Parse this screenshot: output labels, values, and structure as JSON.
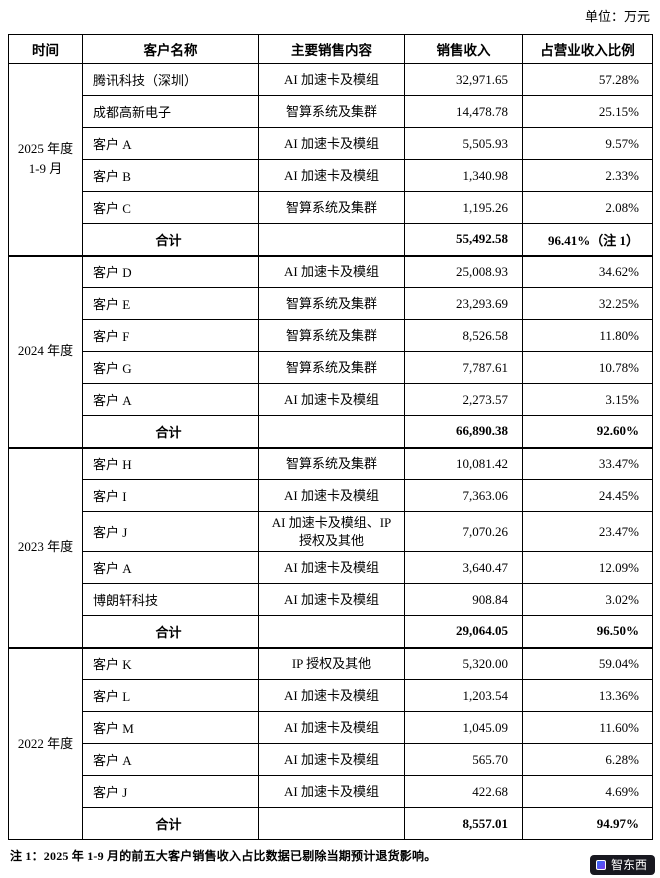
{
  "unit_label": "单位：万元",
  "table": {
    "headers": [
      "时间",
      "客户名称",
      "主要销售内容",
      "销售收入",
      "占营业收入比例"
    ],
    "groups": [
      {
        "period_lines": [
          "2025 年度",
          "1-9 月"
        ],
        "rows": [
          {
            "customer": "腾讯科技（深圳）",
            "content": "AI 加速卡及模组",
            "revenue": "32,971.65",
            "ratio": "57.28%"
          },
          {
            "customer": "成都高新电子",
            "content": "智算系统及集群",
            "revenue": "14,478.78",
            "ratio": "25.15%"
          },
          {
            "customer": "客户 A",
            "content": "AI 加速卡及模组",
            "revenue": "5,505.93",
            "ratio": "9.57%"
          },
          {
            "customer": "客户 B",
            "content": "AI 加速卡及模组",
            "revenue": "1,340.98",
            "ratio": "2.33%"
          },
          {
            "customer": "客户 C",
            "content": "智算系统及集群",
            "revenue": "1,195.26",
            "ratio": "2.08%"
          }
        ],
        "total": {
          "label": "合计",
          "content": "",
          "revenue": "55,492.58",
          "ratio": "96.41%（注 1）"
        }
      },
      {
        "period_lines": [
          "2024 年度"
        ],
        "rows": [
          {
            "customer": "客户 D",
            "content": "AI 加速卡及模组",
            "revenue": "25,008.93",
            "ratio": "34.62%"
          },
          {
            "customer": "客户 E",
            "content": "智算系统及集群",
            "revenue": "23,293.69",
            "ratio": "32.25%"
          },
          {
            "customer": "客户 F",
            "content": "智算系统及集群",
            "revenue": "8,526.58",
            "ratio": "11.80%"
          },
          {
            "customer": "客户 G",
            "content": "智算系统及集群",
            "revenue": "7,787.61",
            "ratio": "10.78%"
          },
          {
            "customer": "客户 A",
            "content": "AI 加速卡及模组",
            "revenue": "2,273.57",
            "ratio": "3.15%"
          }
        ],
        "total": {
          "label": "合计",
          "content": "",
          "revenue": "66,890.38",
          "ratio": "92.60%"
        }
      },
      {
        "period_lines": [
          "2023 年度"
        ],
        "rows": [
          {
            "customer": "客户 H",
            "content": "智算系统及集群",
            "revenue": "10,081.42",
            "ratio": "33.47%"
          },
          {
            "customer": "客户 I",
            "content": "AI 加速卡及模组",
            "revenue": "7,363.06",
            "ratio": "24.45%"
          },
          {
            "customer": "客户 J",
            "content": "AI 加速卡及模组、IP 授权及其他",
            "revenue": "7,070.26",
            "ratio": "23.47%"
          },
          {
            "customer": "客户 A",
            "content": "AI 加速卡及模组",
            "revenue": "3,640.47",
            "ratio": "12.09%"
          },
          {
            "customer": "博朗轩科技",
            "content": "AI 加速卡及模组",
            "revenue": "908.84",
            "ratio": "3.02%"
          }
        ],
        "total": {
          "label": "合计",
          "content": "",
          "revenue": "29,064.05",
          "ratio": "96.50%"
        }
      },
      {
        "period_lines": [
          "2022 年度"
        ],
        "rows": [
          {
            "customer": "客户 K",
            "content": "IP 授权及其他",
            "revenue": "5,320.00",
            "ratio": "59.04%"
          },
          {
            "customer": "客户 L",
            "content": "AI 加速卡及模组",
            "revenue": "1,203.54",
            "ratio": "13.36%"
          },
          {
            "customer": "客户 M",
            "content": "AI 加速卡及模组",
            "revenue": "1,045.09",
            "ratio": "11.60%"
          },
          {
            "customer": "客户 A",
            "content": "AI 加速卡及模组",
            "revenue": "565.70",
            "ratio": "6.28%"
          },
          {
            "customer": "客户 J",
            "content": "AI 加速卡及模组",
            "revenue": "422.68",
            "ratio": "4.69%"
          }
        ],
        "total": {
          "label": "合计",
          "content": "",
          "revenue": "8,557.01",
          "ratio": "94.97%"
        }
      }
    ]
  },
  "footnote": "注 1：2025 年 1-9 月的前五大客户销售收入占比数据已剔除当期预计退货影响。",
  "watermark": {
    "text": "智东西"
  }
}
